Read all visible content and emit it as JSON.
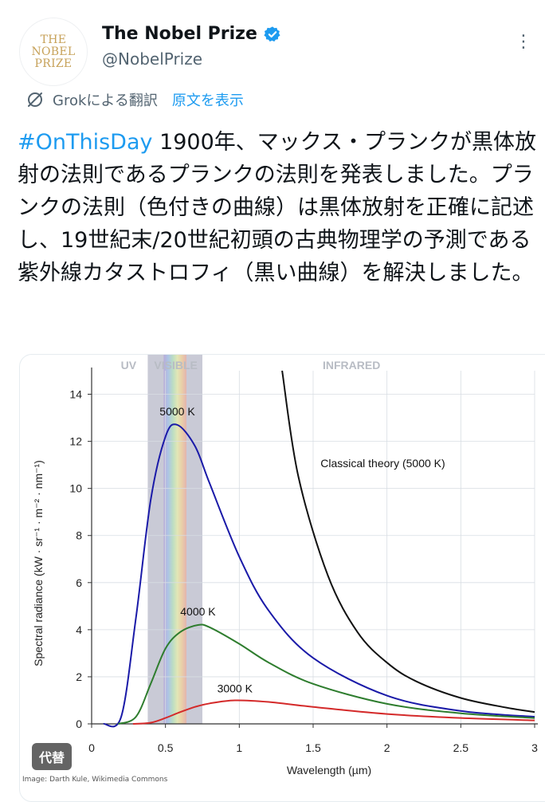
{
  "account": {
    "logo_lines": [
      "THE",
      "NOBEL",
      "PRIZE"
    ],
    "display_name": "The Nobel Prize",
    "handle": "@NobelPrize",
    "verified_color": "#1d9bf0"
  },
  "translation": {
    "label": "Grokによる翻訳",
    "show_original": "原文を表示"
  },
  "tweet": {
    "hashtag": "#OnThisDay",
    "body": " 1900年、マックス・プランクが黒体放射の法則であるプランクの法則を発表しました。プランクの法則（色付きの曲線）は黒体放射を正確に記述し、19世紀末/20世紀初頭の古典物理学の予測である紫外線カタストロフィ（黒い曲線）を解決しました。"
  },
  "media": {
    "alt_badge": "代替",
    "credit": "Image: Darth Kule, Wikimedia Commons"
  },
  "chart_data": {
    "type": "line",
    "xlabel": "Wavelength (µm)",
    "ylabel": "Spectral radiance (kW · sr⁻¹ · m⁻² · nm⁻¹)",
    "xlim": [
      0,
      3
    ],
    "ylim": [
      0,
      15
    ],
    "x_ticks": [
      0,
      0.5,
      1,
      1.5,
      2,
      2.5,
      3
    ],
    "x_tick_labels": [
      "0",
      "0.5",
      "1",
      "1.5",
      "2",
      "2.5",
      "3"
    ],
    "y_ticks": [
      0,
      2,
      4,
      6,
      8,
      10,
      12,
      14
    ],
    "y_tick_labels": [
      "0",
      "2",
      "4",
      "6",
      "8",
      "10",
      "12",
      "14"
    ],
    "grid": true,
    "regions": [
      {
        "label": "UV",
        "range": [
          0,
          0.38
        ]
      },
      {
        "label": "VISIBLE",
        "range": [
          0.38,
          0.75
        ]
      },
      {
        "label": "INFRARED",
        "range": [
          0.75,
          3
        ]
      }
    ],
    "series": [
      {
        "name": "5000 K",
        "color": "#1a1aa8",
        "temperature_K": 5000,
        "peak": [
          0.58,
          12.7
        ],
        "x": [
          0.2,
          0.3,
          0.4,
          0.5,
          0.58,
          0.7,
          0.8,
          1.0,
          1.2,
          1.5,
          2.0,
          2.5,
          3.0
        ],
        "y": [
          0.3,
          4.5,
          9.5,
          12.2,
          12.7,
          11.8,
          10.2,
          7.1,
          4.8,
          2.8,
          1.2,
          0.55,
          0.3
        ]
      },
      {
        "name": "4000 K",
        "color": "#2e7d2e",
        "temperature_K": 4000,
        "peak": [
          0.72,
          4.2
        ],
        "x": [
          0.3,
          0.4,
          0.5,
          0.6,
          0.72,
          0.8,
          1.0,
          1.2,
          1.5,
          2.0,
          2.5,
          3.0
        ],
        "y": [
          0.3,
          1.7,
          3.2,
          3.9,
          4.2,
          4.1,
          3.4,
          2.6,
          1.7,
          0.85,
          0.45,
          0.25
        ]
      },
      {
        "name": "3000 K",
        "color": "#d42a2a",
        "temperature_K": 3000,
        "peak": [
          0.97,
          1.0
        ],
        "x": [
          0.4,
          0.5,
          0.6,
          0.7,
          0.8,
          0.97,
          1.2,
          1.5,
          2.0,
          2.5,
          3.0
        ],
        "y": [
          0.05,
          0.25,
          0.5,
          0.72,
          0.87,
          1.0,
          0.93,
          0.72,
          0.42,
          0.25,
          0.15
        ]
      },
      {
        "name": "Classical theory (5000 K)",
        "color": "#111111",
        "temperature_K": 5000,
        "x": [
          1.29,
          1.4,
          1.6,
          1.8,
          2.0,
          2.2,
          2.5,
          2.8,
          3.0
        ],
        "y": [
          15,
          10.5,
          6.3,
          3.9,
          2.6,
          1.8,
          1.1,
          0.7,
          0.5
        ]
      }
    ]
  }
}
